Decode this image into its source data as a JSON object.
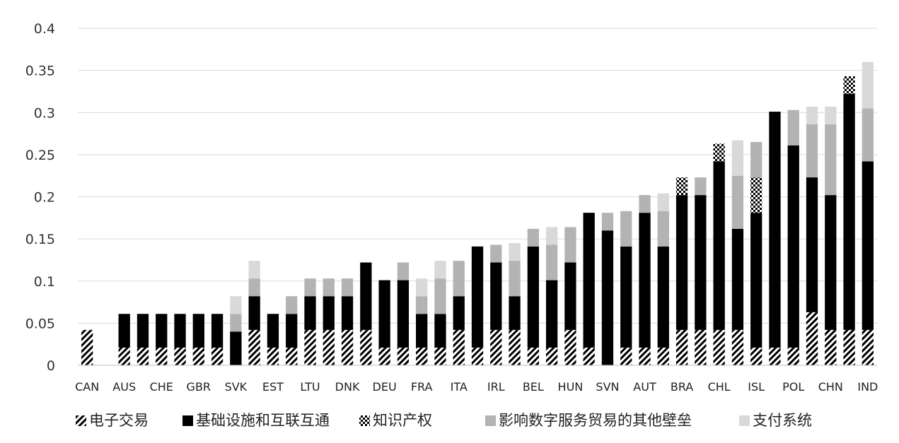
{
  "chart_data": {
    "type": "bar",
    "stacked": true,
    "title": "",
    "xlabel": "",
    "ylabel": "",
    "ylim": [
      0,
      0.4
    ],
    "yticks": [
      0,
      0.05,
      0.1,
      0.15,
      0.2,
      0.25,
      0.3,
      0.35,
      0.4
    ],
    "ytick_labels": [
      "0",
      "0.05",
      "0.1",
      "0.15",
      "0.2",
      "0.25",
      "0.3",
      "0.35",
      "0.4"
    ],
    "grid": true,
    "legend_position": "bottom",
    "categories": [
      "CAN",
      "X2",
      "AUS",
      "X4",
      "CHE",
      "X6",
      "GBR",
      "X8",
      "SVK",
      "X10",
      "EST",
      "X12",
      "LTU",
      "X14",
      "DNK",
      "X16",
      "DEU",
      "X18",
      "FRA",
      "X20",
      "ITA",
      "X22",
      "IRL",
      "X24",
      "BEL",
      "X26",
      "HUN",
      "X28",
      "SVN",
      "X30",
      "AUT",
      "X32",
      "BRA",
      "X34",
      "CHL",
      "X36",
      "ISL",
      "X38",
      "POL",
      "X40",
      "CHN",
      "X42",
      "IND"
    ],
    "category_labels": [
      "CAN",
      "",
      "AUS",
      "",
      "CHE",
      "",
      "GBR",
      "",
      "SVK",
      "",
      "EST",
      "",
      "LTU",
      "",
      "DNK",
      "",
      "DEU",
      "",
      "FRA",
      "",
      "ITA",
      "",
      "IRL",
      "",
      "BEL",
      "",
      "HUN",
      "",
      "SVN",
      "",
      "AUT",
      "",
      "BRA",
      "",
      "CHL",
      "",
      "ISL",
      "",
      "POL",
      "",
      "CHN",
      "",
      "IND"
    ],
    "series": [
      {
        "name": "电子交易",
        "color": "#000000",
        "pattern": "diagonal-hatch",
        "values": [
          0.042,
          0,
          0.021,
          0.021,
          0.021,
          0.021,
          0.021,
          0.021,
          0,
          0.042,
          0.021,
          0.021,
          0.042,
          0.042,
          0.042,
          0.042,
          0.021,
          0.021,
          0.021,
          0.021,
          0.042,
          0.021,
          0.042,
          0.042,
          0.021,
          0.021,
          0.042,
          0.021,
          0,
          0.021,
          0.021,
          0.021,
          0.042,
          0.042,
          0.042,
          0.042,
          0.021,
          0.021,
          0.021,
          0.063,
          0.042,
          0.042,
          0.042
        ]
      },
      {
        "name": "基础设施和互联互通",
        "color": "#000000",
        "pattern": "solid",
        "values": [
          0,
          0,
          0.04,
          0.04,
          0.04,
          0.04,
          0.04,
          0.04,
          0.04,
          0.04,
          0.04,
          0.04,
          0.04,
          0.04,
          0.04,
          0.08,
          0.08,
          0.08,
          0.04,
          0.04,
          0.04,
          0.12,
          0.08,
          0.04,
          0.12,
          0.08,
          0.08,
          0.16,
          0.16,
          0.12,
          0.16,
          0.12,
          0.16,
          0.16,
          0.2,
          0.12,
          0.16,
          0.28,
          0.24,
          0.16,
          0.16,
          0.28,
          0.2
        ]
      },
      {
        "name": "知识产权",
        "color": "#000000",
        "pattern": "crosshatch",
        "values": [
          0,
          0,
          0,
          0,
          0,
          0,
          0,
          0,
          0,
          0,
          0,
          0,
          0,
          0,
          0,
          0,
          0,
          0,
          0,
          0,
          0,
          0,
          0,
          0,
          0,
          0,
          0,
          0,
          0,
          0,
          0,
          0,
          0.021,
          0,
          0.021,
          0,
          0.042,
          0,
          0,
          0,
          0,
          0.021,
          0
        ]
      },
      {
        "name": "影响数字服务贸易的其他壁垒",
        "color": "#b3b3b3",
        "pattern": "solid",
        "values": [
          0,
          0,
          0,
          0,
          0,
          0,
          0,
          0,
          0.021,
          0.021,
          0,
          0.021,
          0.021,
          0.021,
          0.021,
          0,
          0,
          0.021,
          0.021,
          0.042,
          0.042,
          0,
          0.021,
          0.042,
          0.021,
          0.042,
          0.042,
          0,
          0.021,
          0.042,
          0.021,
          0.042,
          0,
          0.021,
          0,
          0.063,
          0.042,
          0,
          0.042,
          0.063,
          0.084,
          0,
          0.063
        ]
      },
      {
        "name": "支付系统",
        "color": "#d9d9d9",
        "pattern": "solid",
        "values": [
          0,
          0,
          0,
          0,
          0,
          0,
          0,
          0,
          0.021,
          0.021,
          0,
          0,
          0,
          0,
          0,
          0,
          0,
          0,
          0.021,
          0.021,
          0,
          0,
          0,
          0.021,
          0,
          0.021,
          0,
          0,
          0,
          0,
          0,
          0.021,
          0,
          0,
          0,
          0.042,
          0,
          0,
          0,
          0.021,
          0.021,
          0,
          0.055
        ]
      }
    ]
  }
}
